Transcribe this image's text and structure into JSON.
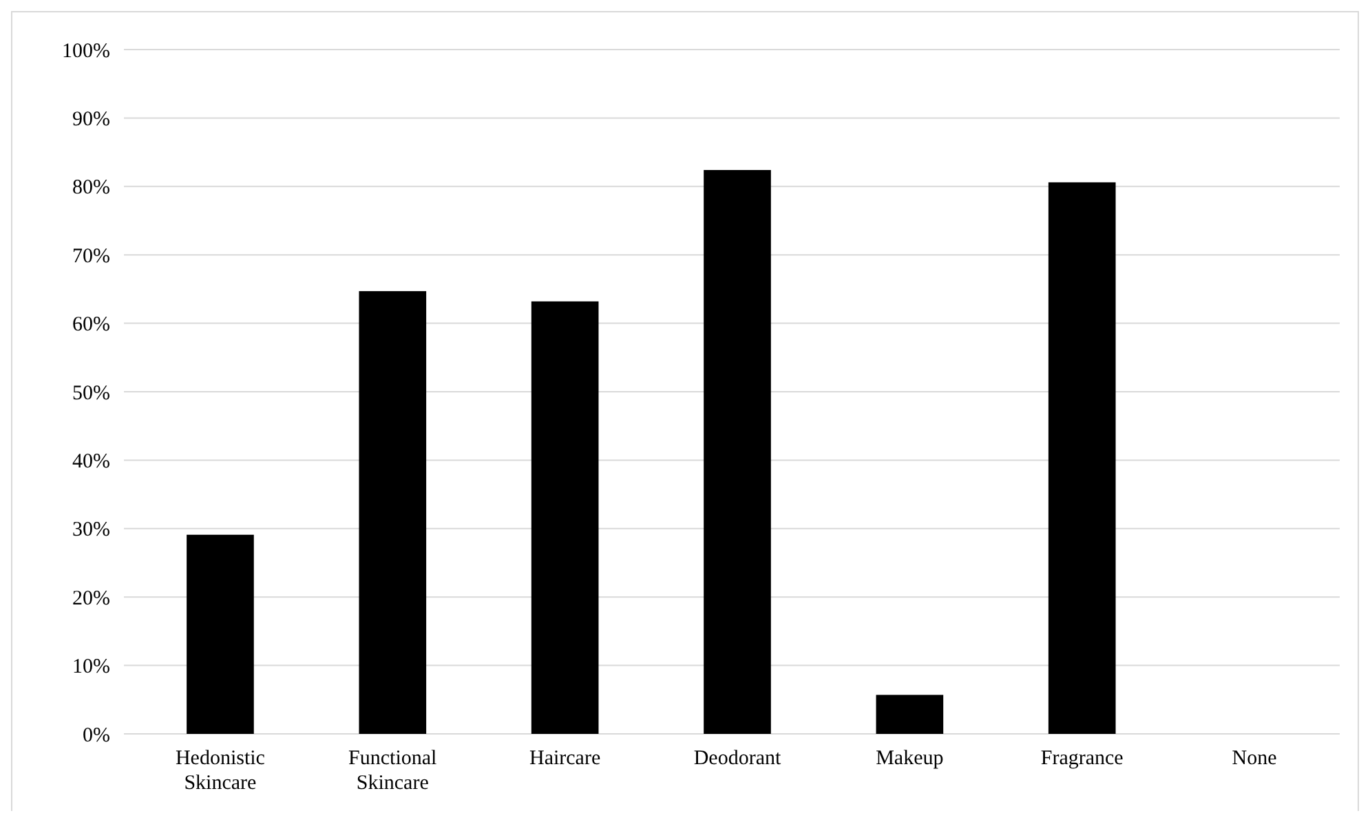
{
  "chart_data": {
    "type": "bar",
    "categories": [
      "Hedonistic Skincare",
      "Functional Skincare",
      "Haircare",
      "Deodorant",
      "Makeup",
      "Fragrance",
      "None"
    ],
    "values": [
      29.1,
      64.7,
      63.2,
      82.4,
      5.7,
      80.6,
      0
    ],
    "color": "#000000",
    "ylim": [
      0,
      100
    ],
    "yticks": [
      {
        "value": 0,
        "label": "0%"
      },
      {
        "value": 10,
        "label": "10%"
      },
      {
        "value": 20,
        "label": "20%"
      },
      {
        "value": 30,
        "label": "30%"
      },
      {
        "value": 40,
        "label": "40%"
      },
      {
        "value": 50,
        "label": "50%"
      },
      {
        "value": 60,
        "label": "60%"
      },
      {
        "value": 70,
        "label": "70%"
      },
      {
        "value": 80,
        "label": "80%"
      },
      {
        "value": 90,
        "label": "90%"
      },
      {
        "value": 100,
        "label": "100%"
      }
    ],
    "grid": "y"
  }
}
